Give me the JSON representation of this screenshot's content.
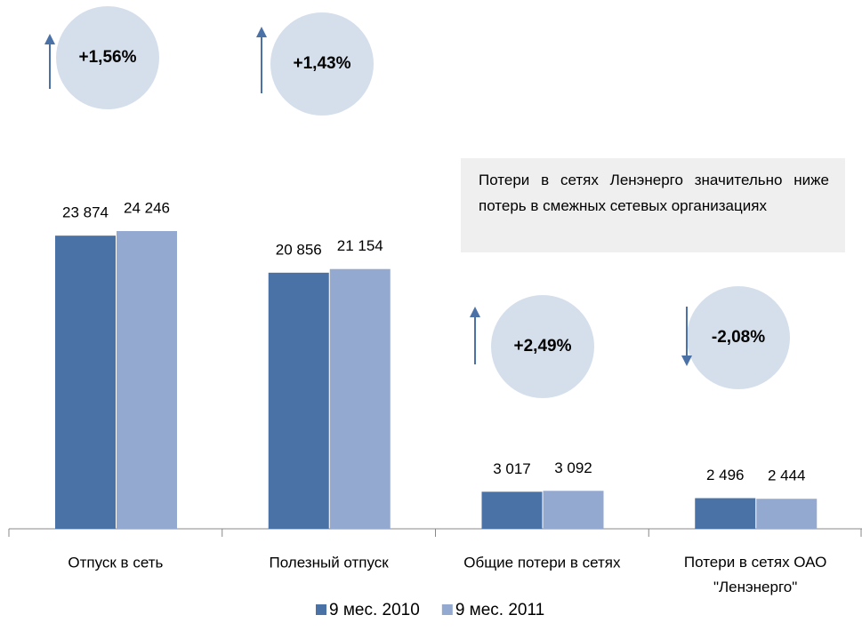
{
  "chart_data": {
    "type": "bar",
    "categories": [
      "Отпуск в сеть",
      "Полезный отпуск",
      "Общие потери в сетях",
      "Потери в сетях ОАО \"Ленэнерго\""
    ],
    "series": [
      {
        "name": "9 мес. 2010",
        "color": "#4a72a6",
        "values": [
          23874,
          20856,
          3017,
          2496
        ],
        "value_labels": [
          "23 874",
          "20 856",
          "3 017",
          "2 496"
        ]
      },
      {
        "name": "9 мес. 2011",
        "color": "#94a9d0",
        "values": [
          24246,
          21154,
          3092,
          2444
        ],
        "value_labels": [
          "24 246",
          "21 154",
          "3 092",
          "2 444"
        ]
      }
    ],
    "annotations": [
      "+1,56%",
      "+1,43%",
      "+2,49%",
      "-2,08%"
    ],
    "note": "Потери в сетях Ленэнерго значительно ниже потерь в смежных сетевых организациях",
    "legend": "bottom"
  }
}
